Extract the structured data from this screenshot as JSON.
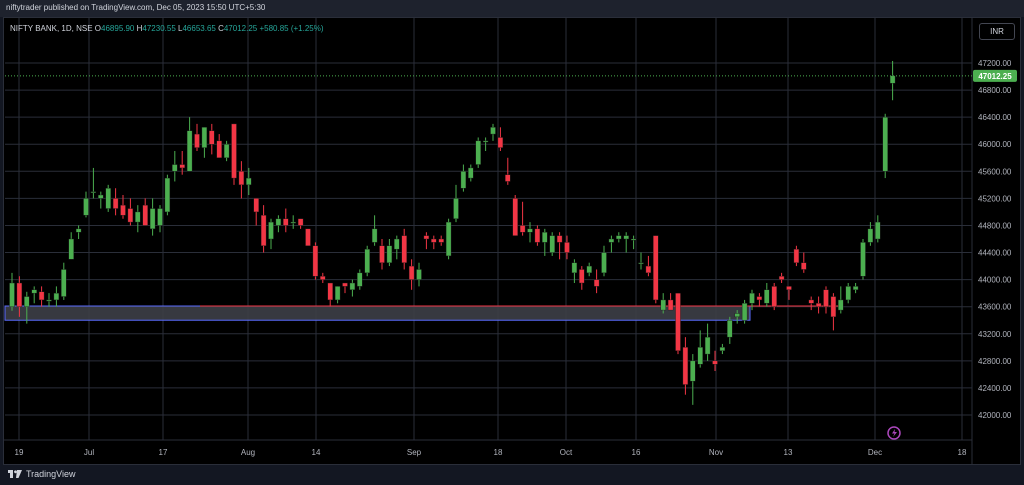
{
  "publish_bar": {
    "text": "niftytrader published on TradingView.com, Dec 05, 2023 15:50 UTC+5:30"
  },
  "legend": {
    "symbol": "NIFTY BANK, 1D, NSE",
    "open_label": "O",
    "open": "46895.90",
    "high_label": "H",
    "high": "47230.55",
    "low_label": "L",
    "low": "46653.65",
    "close_label": "C",
    "close": "47012.25",
    "change": "+580.85 (+1.25%)"
  },
  "currency_button": "INR",
  "last_price_label": "47012.25",
  "footer": {
    "brand": "TradingView"
  },
  "colors": {
    "up": "#4caf50",
    "down": "#f23645",
    "grid": "#2a2e39",
    "background": "#000000",
    "zone": "#3d3f47"
  },
  "chart_data": {
    "type": "candlestick",
    "title": "",
    "xlabel": "",
    "ylabel": "",
    "ylim": [
      41800,
      47500
    ],
    "y_ticks": [
      "47200.00",
      "46800.00",
      "46400.00",
      "46000.00",
      "45600.00",
      "45200.00",
      "44800.00",
      "44400.00",
      "44000.00",
      "43600.00",
      "43200.00",
      "42800.00",
      "42400.00",
      "42000.00"
    ],
    "x_ticks": [
      "19",
      "Jul",
      "17",
      "Aug",
      "14",
      "Sep",
      "18",
      "Oct",
      "16",
      "Nov",
      "13",
      "Dec",
      "18"
    ],
    "grid": true,
    "support_zone": {
      "from": 43400,
      "to": 43610
    },
    "candles": [
      {
        "o": 43600,
        "h": 44100,
        "l": 43540,
        "c": 43950
      },
      {
        "o": 43950,
        "h": 44050,
        "l": 43450,
        "c": 43600
      },
      {
        "o": 43600,
        "h": 43820,
        "l": 43350,
        "c": 43750
      },
      {
        "o": 43800,
        "h": 43900,
        "l": 43650,
        "c": 43850
      },
      {
        "o": 43820,
        "h": 43900,
        "l": 43600,
        "c": 43700
      },
      {
        "o": 43700,
        "h": 43800,
        "l": 43600,
        "c": 43700
      },
      {
        "o": 43700,
        "h": 43900,
        "l": 43600,
        "c": 43800
      },
      {
        "o": 43750,
        "h": 44250,
        "l": 43700,
        "c": 44150
      },
      {
        "o": 44300,
        "h": 44700,
        "l": 44300,
        "c": 44600
      },
      {
        "o": 44700,
        "h": 44800,
        "l": 44600,
        "c": 44750
      },
      {
        "o": 44950,
        "h": 45300,
        "l": 44920,
        "c": 45200
      },
      {
        "o": 45300,
        "h": 45650,
        "l": 45200,
        "c": 45300
      },
      {
        "o": 45200,
        "h": 45300,
        "l": 45050,
        "c": 45250
      },
      {
        "o": 45050,
        "h": 45400,
        "l": 45000,
        "c": 45350
      },
      {
        "o": 45200,
        "h": 45350,
        "l": 44950,
        "c": 45050
      },
      {
        "o": 45100,
        "h": 45250,
        "l": 44900,
        "c": 44950
      },
      {
        "o": 45050,
        "h": 45200,
        "l": 44800,
        "c": 44850
      },
      {
        "o": 44850,
        "h": 45100,
        "l": 44700,
        "c": 45000
      },
      {
        "o": 45100,
        "h": 45200,
        "l": 44800,
        "c": 44800
      },
      {
        "o": 44750,
        "h": 45200,
        "l": 44650,
        "c": 45050
      },
      {
        "o": 44800,
        "h": 45100,
        "l": 44700,
        "c": 45050
      },
      {
        "o": 45000,
        "h": 45550,
        "l": 44950,
        "c": 45500
      },
      {
        "o": 45600,
        "h": 45900,
        "l": 45450,
        "c": 45700
      },
      {
        "o": 45700,
        "h": 45900,
        "l": 45550,
        "c": 45650
      },
      {
        "o": 45600,
        "h": 46400,
        "l": 45600,
        "c": 46200
      },
      {
        "o": 46150,
        "h": 46300,
        "l": 45900,
        "c": 45950
      },
      {
        "o": 45950,
        "h": 46250,
        "l": 45800,
        "c": 46250
      },
      {
        "o": 46200,
        "h": 46300,
        "l": 45850,
        "c": 46000
      },
      {
        "o": 46050,
        "h": 46150,
        "l": 45800,
        "c": 45800
      },
      {
        "o": 45800,
        "h": 46050,
        "l": 45750,
        "c": 46000
      },
      {
        "o": 46300,
        "h": 46300,
        "l": 45400,
        "c": 45500
      },
      {
        "o": 45600,
        "h": 45750,
        "l": 45200,
        "c": 45400
      },
      {
        "o": 45400,
        "h": 45650,
        "l": 45250,
        "c": 45500
      },
      {
        "o": 45200,
        "h": 45200,
        "l": 44800,
        "c": 45000
      },
      {
        "o": 44950,
        "h": 45100,
        "l": 44400,
        "c": 44500
      },
      {
        "o": 44600,
        "h": 44900,
        "l": 44450,
        "c": 44850
      },
      {
        "o": 44800,
        "h": 44950,
        "l": 44700,
        "c": 44900
      },
      {
        "o": 44900,
        "h": 45050,
        "l": 44700,
        "c": 44800
      },
      {
        "o": 44850,
        "h": 44950,
        "l": 44750,
        "c": 44850
      },
      {
        "o": 44900,
        "h": 44900,
        "l": 44750,
        "c": 44800
      },
      {
        "o": 44750,
        "h": 44750,
        "l": 44500,
        "c": 44500
      },
      {
        "o": 44500,
        "h": 44550,
        "l": 44000,
        "c": 44050
      },
      {
        "o": 44050,
        "h": 44100,
        "l": 43950,
        "c": 44000
      },
      {
        "o": 43950,
        "h": 43950,
        "l": 43600,
        "c": 43700
      },
      {
        "o": 43700,
        "h": 43900,
        "l": 43650,
        "c": 43900
      },
      {
        "o": 43950,
        "h": 43950,
        "l": 43800,
        "c": 43900
      },
      {
        "o": 43850,
        "h": 44000,
        "l": 43750,
        "c": 43950
      },
      {
        "o": 43900,
        "h": 44150,
        "l": 43850,
        "c": 44100
      },
      {
        "o": 44100,
        "h": 44500,
        "l": 44050,
        "c": 44450
      },
      {
        "o": 44550,
        "h": 44950,
        "l": 44500,
        "c": 44750
      },
      {
        "o": 44500,
        "h": 44600,
        "l": 44150,
        "c": 44250
      },
      {
        "o": 44250,
        "h": 44600,
        "l": 44200,
        "c": 44500
      },
      {
        "o": 44450,
        "h": 44650,
        "l": 44300,
        "c": 44600
      },
      {
        "o": 44650,
        "h": 44750,
        "l": 44150,
        "c": 44250
      },
      {
        "o": 44200,
        "h": 44300,
        "l": 43850,
        "c": 44000
      },
      {
        "o": 44000,
        "h": 44250,
        "l": 43900,
        "c": 44150
      },
      {
        "o": 44650,
        "h": 44700,
        "l": 44450,
        "c": 44600
      },
      {
        "o": 44600,
        "h": 44650,
        "l": 44450,
        "c": 44550
      },
      {
        "o": 44600,
        "h": 44650,
        "l": 44500,
        "c": 44550
      },
      {
        "o": 44350,
        "h": 44900,
        "l": 44300,
        "c": 44850
      },
      {
        "o": 44900,
        "h": 45400,
        "l": 44850,
        "c": 45200
      },
      {
        "o": 45350,
        "h": 45700,
        "l": 45300,
        "c": 45600
      },
      {
        "o": 45500,
        "h": 45700,
        "l": 45450,
        "c": 45650
      },
      {
        "o": 45700,
        "h": 46100,
        "l": 45650,
        "c": 46050
      },
      {
        "o": 46050,
        "h": 46100,
        "l": 45900,
        "c": 46050
      },
      {
        "o": 46150,
        "h": 46300,
        "l": 46050,
        "c": 46250
      },
      {
        "o": 46100,
        "h": 46250,
        "l": 45900,
        "c": 45950
      },
      {
        "o": 45550,
        "h": 45800,
        "l": 45400,
        "c": 45450
      },
      {
        "o": 45200,
        "h": 45250,
        "l": 44650,
        "c": 44650
      },
      {
        "o": 44800,
        "h": 45150,
        "l": 44650,
        "c": 44700
      },
      {
        "o": 44700,
        "h": 44850,
        "l": 44550,
        "c": 44750
      },
      {
        "o": 44750,
        "h": 44800,
        "l": 44500,
        "c": 44550
      },
      {
        "o": 44550,
        "h": 44750,
        "l": 44350,
        "c": 44700
      },
      {
        "o": 44400,
        "h": 44700,
        "l": 44350,
        "c": 44650
      },
      {
        "o": 44650,
        "h": 44700,
        "l": 44300,
        "c": 44550
      },
      {
        "o": 44550,
        "h": 44650,
        "l": 44300,
        "c": 44400
      },
      {
        "o": 44100,
        "h": 44300,
        "l": 43950,
        "c": 44250
      },
      {
        "o": 44150,
        "h": 44200,
        "l": 43850,
        "c": 43950
      },
      {
        "o": 44100,
        "h": 44250,
        "l": 44050,
        "c": 44200
      },
      {
        "o": 44000,
        "h": 44150,
        "l": 43800,
        "c": 43900
      },
      {
        "o": 44100,
        "h": 44500,
        "l": 44050,
        "c": 44400
      },
      {
        "o": 44550,
        "h": 44650,
        "l": 44400,
        "c": 44600
      },
      {
        "o": 44600,
        "h": 44700,
        "l": 44550,
        "c": 44650
      },
      {
        "o": 44600,
        "h": 44700,
        "l": 44400,
        "c": 44650
      },
      {
        "o": 44600,
        "h": 44650,
        "l": 44450,
        "c": 44600
      },
      {
        "o": 44250,
        "h": 44400,
        "l": 44150,
        "c": 44250
      },
      {
        "o": 44200,
        "h": 44350,
        "l": 44050,
        "c": 44100
      },
      {
        "o": 44650,
        "h": 44650,
        "l": 43650,
        "c": 43700
      },
      {
        "o": 43550,
        "h": 43800,
        "l": 43500,
        "c": 43700
      },
      {
        "o": 43700,
        "h": 43800,
        "l": 43600,
        "c": 43550
      },
      {
        "o": 43800,
        "h": 43800,
        "l": 42900,
        "c": 42950
      },
      {
        "o": 43000,
        "h": 43150,
        "l": 42300,
        "c": 42450
      },
      {
        "o": 42500,
        "h": 42900,
        "l": 42150,
        "c": 42800
      },
      {
        "o": 42750,
        "h": 43250,
        "l": 42700,
        "c": 43000
      },
      {
        "o": 42900,
        "h": 43350,
        "l": 42800,
        "c": 43150
      },
      {
        "o": 42800,
        "h": 42950,
        "l": 42650,
        "c": 42750
      },
      {
        "o": 42950,
        "h": 43050,
        "l": 42900,
        "c": 43000
      },
      {
        "o": 43150,
        "h": 43450,
        "l": 43050,
        "c": 43400
      },
      {
        "o": 43450,
        "h": 43550,
        "l": 43350,
        "c": 43500
      },
      {
        "o": 43400,
        "h": 43700,
        "l": 43350,
        "c": 43650
      },
      {
        "o": 43650,
        "h": 43850,
        "l": 43550,
        "c": 43800
      },
      {
        "o": 43750,
        "h": 43800,
        "l": 43600,
        "c": 43700
      },
      {
        "o": 43650,
        "h": 43950,
        "l": 43600,
        "c": 43850
      },
      {
        "o": 43900,
        "h": 43950,
        "l": 43550,
        "c": 43600
      },
      {
        "o": 44050,
        "h": 44100,
        "l": 43950,
        "c": 44000
      },
      {
        "o": 43900,
        "h": 43900,
        "l": 43700,
        "c": 43850
      },
      {
        "o": 44450,
        "h": 44500,
        "l": 44200,
        "c": 44250
      },
      {
        "o": 44250,
        "h": 44400,
        "l": 44100,
        "c": 44150
      },
      {
        "o": 43700,
        "h": 43750,
        "l": 43550,
        "c": 43650
      },
      {
        "o": 43650,
        "h": 43750,
        "l": 43500,
        "c": 43600
      },
      {
        "o": 43850,
        "h": 43900,
        "l": 43500,
        "c": 43600
      },
      {
        "o": 43750,
        "h": 43800,
        "l": 43250,
        "c": 43450
      },
      {
        "o": 43550,
        "h": 43900,
        "l": 43500,
        "c": 43700
      },
      {
        "o": 43700,
        "h": 43950,
        "l": 43650,
        "c": 43900
      },
      {
        "o": 43850,
        "h": 43950,
        "l": 43800,
        "c": 43900
      },
      {
        "o": 44050,
        "h": 44600,
        "l": 44000,
        "c": 44550
      },
      {
        "o": 44550,
        "h": 44850,
        "l": 44500,
        "c": 44750
      },
      {
        "o": 44600,
        "h": 44950,
        "l": 44550,
        "c": 44850
      },
      {
        "o": 45600,
        "h": 46450,
        "l": 45500,
        "c": 46400
      },
      {
        "o": 46900,
        "h": 47230,
        "l": 46650,
        "c": 47010
      }
    ]
  }
}
